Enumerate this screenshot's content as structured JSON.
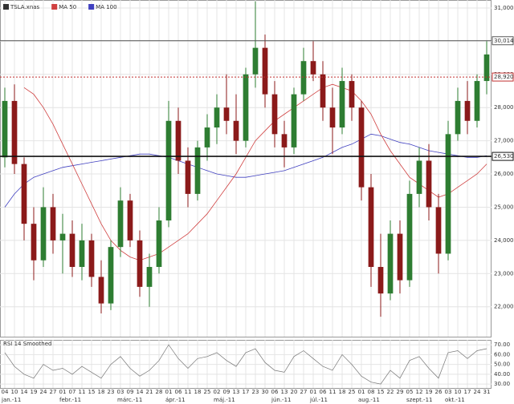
{
  "chart_data": {
    "type": "candlestick",
    "legend": [
      "TSLA.xnas",
      "MA 50",
      "MA 100"
    ],
    "legend_colors": [
      "#333333",
      "#d04040",
      "#4040c0"
    ],
    "categories": [
      "04",
      "10",
      "14",
      "19",
      "24",
      "27",
      "01",
      "07",
      "11",
      "15",
      "18",
      "23",
      "03",
      "09",
      "14",
      "21",
      "28",
      "01",
      "06",
      "11",
      "18",
      "25",
      "02",
      "09",
      "13",
      "17",
      "23",
      "30",
      "06",
      "13",
      "20",
      "27",
      "01",
      "06",
      "11",
      "18",
      "25",
      "01",
      "08",
      "15",
      "22",
      "29",
      "05",
      "12",
      "19",
      "26",
      "03",
      "10",
      "17",
      "24",
      "31"
    ],
    "months": [
      "jan.-11",
      "febr.-11",
      "márc.-11",
      "ápr.-11",
      "máj.-11",
      "jún.-11",
      "júl.-11",
      "aug.-11",
      "szept.-11",
      "okt.-11"
    ],
    "open": [
      26500,
      28200,
      26300,
      24500,
      23400,
      25000,
      24000,
      24200,
      23200,
      24000,
      22900,
      22100,
      23800,
      25200,
      24000,
      22600,
      23200,
      24600,
      27600,
      26400,
      25400,
      26800,
      27400,
      28000,
      27600,
      27000,
      29000,
      29800,
      28400,
      27200,
      26800,
      28400,
      29400,
      29000,
      28000,
      27400,
      28800,
      28000,
      25600,
      23200,
      22400,
      24200,
      22800,
      25400,
      26400,
      25000,
      23600,
      27200,
      28200,
      27600,
      28800
    ],
    "high": [
      28600,
      28700,
      26500,
      25000,
      25600,
      25400,
      24800,
      24600,
      24500,
      24200,
      23400,
      24000,
      25600,
      25400,
      24300,
      23600,
      25000,
      28200,
      28000,
      26800,
      27000,
      27800,
      28400,
      29000,
      28400,
      29200,
      31200,
      30200,
      28800,
      27600,
      28600,
      29800,
      30000,
      29400,
      28600,
      29200,
      29000,
      28200,
      26000,
      24200,
      24600,
      24600,
      25800,
      26800,
      26900,
      25400,
      27600,
      28600,
      28800,
      29000,
      30000
    ],
    "low": [
      26200,
      26000,
      24000,
      22800,
      23200,
      23600,
      23000,
      22900,
      22800,
      22600,
      21800,
      21900,
      23500,
      23800,
      22300,
      22000,
      23000,
      24400,
      26000,
      25000,
      25200,
      26400,
      26900,
      27200,
      26600,
      26800,
      28600,
      28000,
      26800,
      26200,
      26600,
      28200,
      28800,
      27600,
      26600,
      27200,
      27600,
      25200,
      22600,
      21700,
      22200,
      22400,
      22600,
      25000,
      24600,
      23000,
      23400,
      27000,
      27200,
      27400,
      28400
    ],
    "close": [
      28200,
      26300,
      24500,
      23400,
      25000,
      24000,
      24200,
      23200,
      24000,
      22900,
      22100,
      23800,
      25200,
      24000,
      22600,
      23200,
      24600,
      27600,
      26400,
      25400,
      26800,
      27400,
      28000,
      27600,
      27000,
      29000,
      29800,
      28400,
      27200,
      26800,
      28400,
      29400,
      29000,
      28000,
      27400,
      28800,
      28000,
      25600,
      23200,
      22400,
      24200,
      22800,
      25400,
      26400,
      25000,
      23600,
      27200,
      28200,
      27600,
      28800,
      29600
    ],
    "up_color": "#2e7d32",
    "down_color": "#8b1a1a",
    "ma50": [
      null,
      null,
      28600,
      28400,
      28000,
      27500,
      26900,
      26300,
      25700,
      25100,
      24500,
      24000,
      23700,
      23500,
      23400,
      23500,
      23600,
      23800,
      24000,
      24200,
      24500,
      24800,
      25200,
      25600,
      26000,
      26500,
      27000,
      27300,
      27600,
      27800,
      28000,
      28200,
      28400,
      28600,
      28700,
      28600,
      28500,
      28200,
      27800,
      27200,
      26700,
      26300,
      25900,
      25700,
      25500,
      25300,
      25400,
      25600,
      25800,
      26000,
      26300
    ],
    "ma100": [
      25000,
      25400,
      25700,
      25900,
      26000,
      26100,
      26200,
      26250,
      26300,
      26350,
      26400,
      26450,
      26500,
      26550,
      26600,
      26600,
      26550,
      26500,
      26400,
      26300,
      26200,
      26100,
      26000,
      25950,
      25900,
      25900,
      25950,
      26000,
      26050,
      26100,
      26200,
      26300,
      26400,
      26500,
      26650,
      26800,
      26900,
      27050,
      27200,
      27150,
      27050,
      26950,
      26900,
      26800,
      26700,
      26650,
      26600,
      26550,
      26500,
      26500,
      26550
    ],
    "ylim": [
      21100,
      31240
    ],
    "yticks": [
      {
        "value": 22000,
        "label": "22,000"
      },
      {
        "value": 23000,
        "label": "23,000"
      },
      {
        "value": 24000,
        "label": "24,000"
      },
      {
        "value": 25000,
        "label": "25,000"
      },
      {
        "value": 26000,
        "label": "26,000"
      },
      {
        "value": 27000,
        "label": "27,000"
      },
      {
        "value": 28000,
        "label": "28,000"
      },
      {
        "value": 29000,
        "label": "29,000"
      },
      {
        "value": 30000,
        "label": "30,000"
      },
      {
        "value": 31000,
        "label": "31,000"
      }
    ],
    "levels": [
      {
        "value": 30014,
        "label": "30,014",
        "color": "#555555"
      },
      {
        "value": 28920,
        "label": "28,920",
        "color": "#c03030"
      },
      {
        "value": 26530,
        "label": "26,530",
        "color": "#111111"
      }
    ],
    "grid": true,
    "rsi": {
      "name": "RSI 14 Smoothed",
      "color": "#777777",
      "values": [
        62,
        48,
        40,
        36,
        50,
        44,
        46,
        40,
        48,
        42,
        36,
        50,
        58,
        46,
        38,
        44,
        54,
        70,
        56,
        46,
        56,
        58,
        62,
        54,
        48,
        62,
        66,
        52,
        44,
        42,
        58,
        64,
        56,
        48,
        44,
        60,
        50,
        38,
        32,
        30,
        44,
        36,
        54,
        58,
        46,
        36,
        62,
        64,
        56,
        64,
        66
      ],
      "ylim": [
        26,
        75
      ],
      "yticks": [
        {
          "value": 30,
          "label": "30.00"
        },
        {
          "value": 40,
          "label": "40.00"
        },
        {
          "value": 50,
          "label": "50.00"
        },
        {
          "value": 60,
          "label": "60.00"
        },
        {
          "value": 70,
          "label": "70.00"
        }
      ]
    }
  }
}
